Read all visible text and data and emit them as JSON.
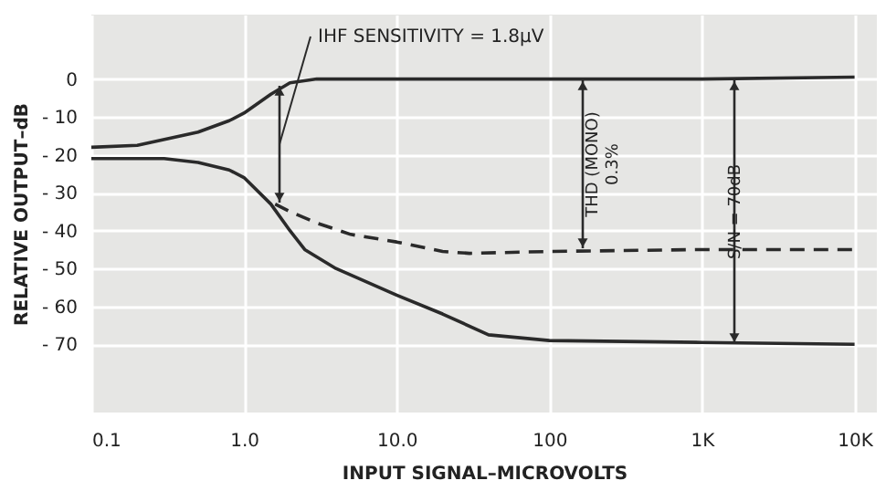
{
  "chart_data": {
    "type": "line",
    "xlabel": "INPUT SIGNAL–MICROVOLTS",
    "ylabel": "RELATIVE OUTPUT–dB",
    "log": "x",
    "grid": true,
    "xlim": [
      0.1,
      14000
    ],
    "ylim": [
      -88,
      17
    ],
    "xticks": [
      0.1,
      {
        "value": 1,
        "label": "1.0"
      },
      {
        "value": 10,
        "label": "10.0"
      },
      100,
      {
        "value": 1000,
        "label": "1K"
      },
      {
        "value": 10000,
        "label": "10K"
      }
    ],
    "yticks": [
      0,
      {
        "value": -10,
        "label": "- 10"
      },
      {
        "value": -20,
        "label": "- 20"
      },
      {
        "value": -30,
        "label": "- 30"
      },
      {
        "value": -40,
        "label": "- 40"
      },
      {
        "value": -50,
        "label": "- 50"
      },
      {
        "value": -60,
        "label": "- 60"
      },
      {
        "value": -70,
        "label": "- 70"
      }
    ],
    "series": [
      {
        "color": "#2a2a2a",
        "line_style": "solid",
        "x": [
          0.1,
          0.2,
          0.5,
          0.8,
          1.0,
          1.5,
          2,
          3,
          5,
          10,
          100,
          1000,
          10000
        ],
        "values": [
          -18,
          -17.5,
          -14,
          -11,
          -9,
          -4,
          -1,
          0,
          0,
          0,
          0,
          0,
          0.5
        ]
      },
      {
        "color": "#2a2a2a",
        "line_style": "dashed",
        "x": [
          1.6,
          2,
          3,
          5,
          10,
          20,
          30,
          100,
          1000,
          10000
        ],
        "values": [
          -33,
          -35,
          -38,
          -41,
          -43,
          -45.5,
          -46,
          -45.5,
          -45,
          -45
        ]
      },
      {
        "color": "#2a2a2a",
        "line_style": "solid",
        "x": [
          0.1,
          0.3,
          0.5,
          0.8,
          1.0,
          1.5,
          2,
          2.5,
          4,
          10,
          20,
          40,
          100,
          1000,
          10000
        ],
        "values": [
          -21,
          -21,
          -22,
          -24,
          -26,
          -33,
          -40,
          -45,
          -50,
          -57,
          -62,
          -67.5,
          -69,
          -69.5,
          -70
        ]
      }
    ],
    "annotations": [
      "IHF SENSITIVITY = 1.8μV",
      "THD (MONO) 0.3%",
      "S/N = 70dB"
    ]
  }
}
